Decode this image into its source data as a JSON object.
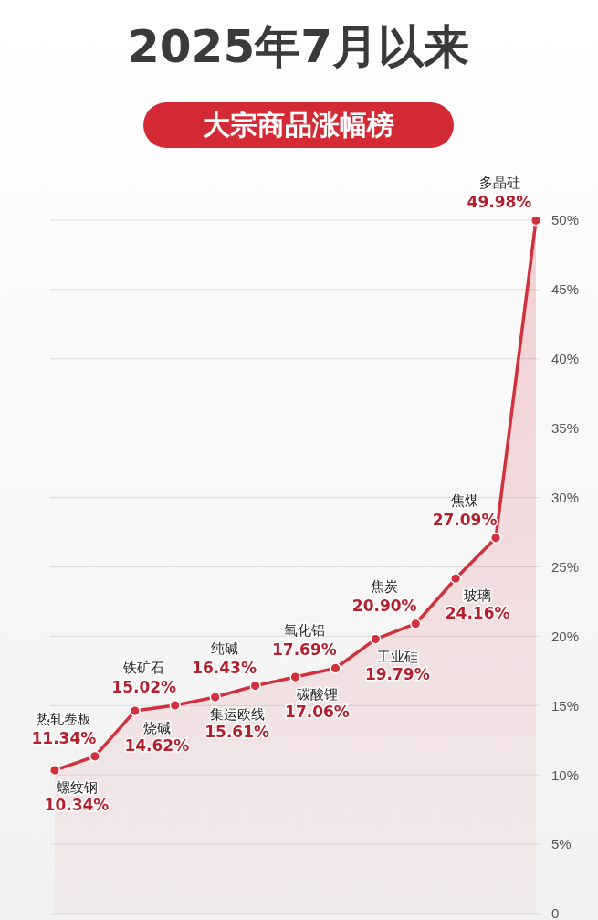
{
  "chart_data": {
    "type": "area",
    "title": "2025年7月以来",
    "subtitle": "大宗商品涨幅榜",
    "categories": [
      null,
      null,
      null,
      null,
      null,
      null,
      null,
      null,
      null,
      null,
      null,
      null,
      null
    ],
    "annotations": [
      "螺纹钢",
      "热轧卷板",
      "烧碱",
      "铁矿石",
      "集运欧线",
      "纯碱",
      "碳酸锂",
      "氧化铝",
      "工业硅",
      "焦炭",
      "玻璃",
      "焦煤",
      "多晶硅"
    ],
    "series": [
      {
        "color": "#d0313d",
        "values": [
          10.34,
          11.34,
          14.62,
          15.02,
          15.61,
          16.43,
          17.06,
          17.69,
          19.79,
          20.9,
          24.16,
          27.09,
          49.98
        ],
        "value_labels": [
          "10.34%",
          "11.34%",
          "14.62%",
          "15.02%",
          "15.61%",
          "16.43%",
          "17.06%",
          "17.69%",
          "19.79%",
          "20.90%",
          "24.16%",
          "27.09%",
          "49.98%"
        ]
      }
    ],
    "ylim": [
      0,
      50
    ],
    "yticks": [
      0,
      {
        "value": 5,
        "label": "5%"
      },
      {
        "value": 10,
        "label": "10%"
      },
      {
        "value": 15,
        "label": "15%"
      },
      {
        "value": 20,
        "label": "20%"
      },
      {
        "value": 25,
        "label": "25%"
      },
      {
        "value": 30,
        "label": "30%"
      },
      {
        "value": 35,
        "label": "35%"
      },
      {
        "value": 40,
        "label": "40%"
      },
      {
        "value": 45,
        "label": "45%"
      },
      {
        "value": 50,
        "label": "50%"
      }
    ],
    "grid": "y",
    "marker": "circle",
    "line_style": "solid",
    "legend": false
  }
}
